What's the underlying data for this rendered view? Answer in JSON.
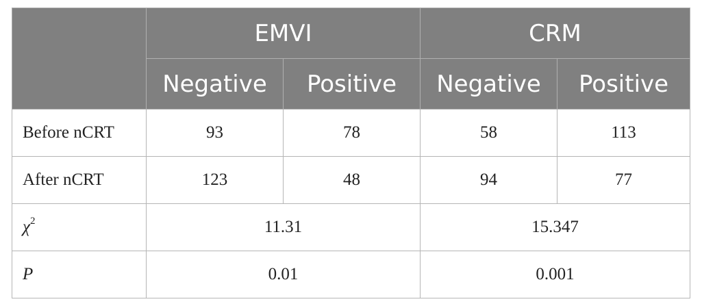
{
  "table": {
    "header": {
      "corner": "",
      "groups": [
        "EMVI",
        "CRM"
      ],
      "subheaders": [
        "Negative",
        "Positive",
        "Negative",
        "Positive"
      ]
    },
    "rows": [
      {
        "label": "Before nCRT",
        "values": [
          "93",
          "78",
          "58",
          "113"
        ]
      },
      {
        "label": "After nCRT",
        "values": [
          "123",
          "48",
          "94",
          "77"
        ]
      }
    ],
    "stats": [
      {
        "label": "χ",
        "label_sup": "2",
        "emvi": "11.31",
        "crm": "15.347"
      },
      {
        "label": "P",
        "label_sup": "",
        "emvi": "0.01",
        "crm": "0.001"
      }
    ]
  },
  "colors": {
    "header_bg": "#808080",
    "header_text": "#ffffff",
    "border": "#b5b5b5",
    "body_text": "#222222"
  }
}
